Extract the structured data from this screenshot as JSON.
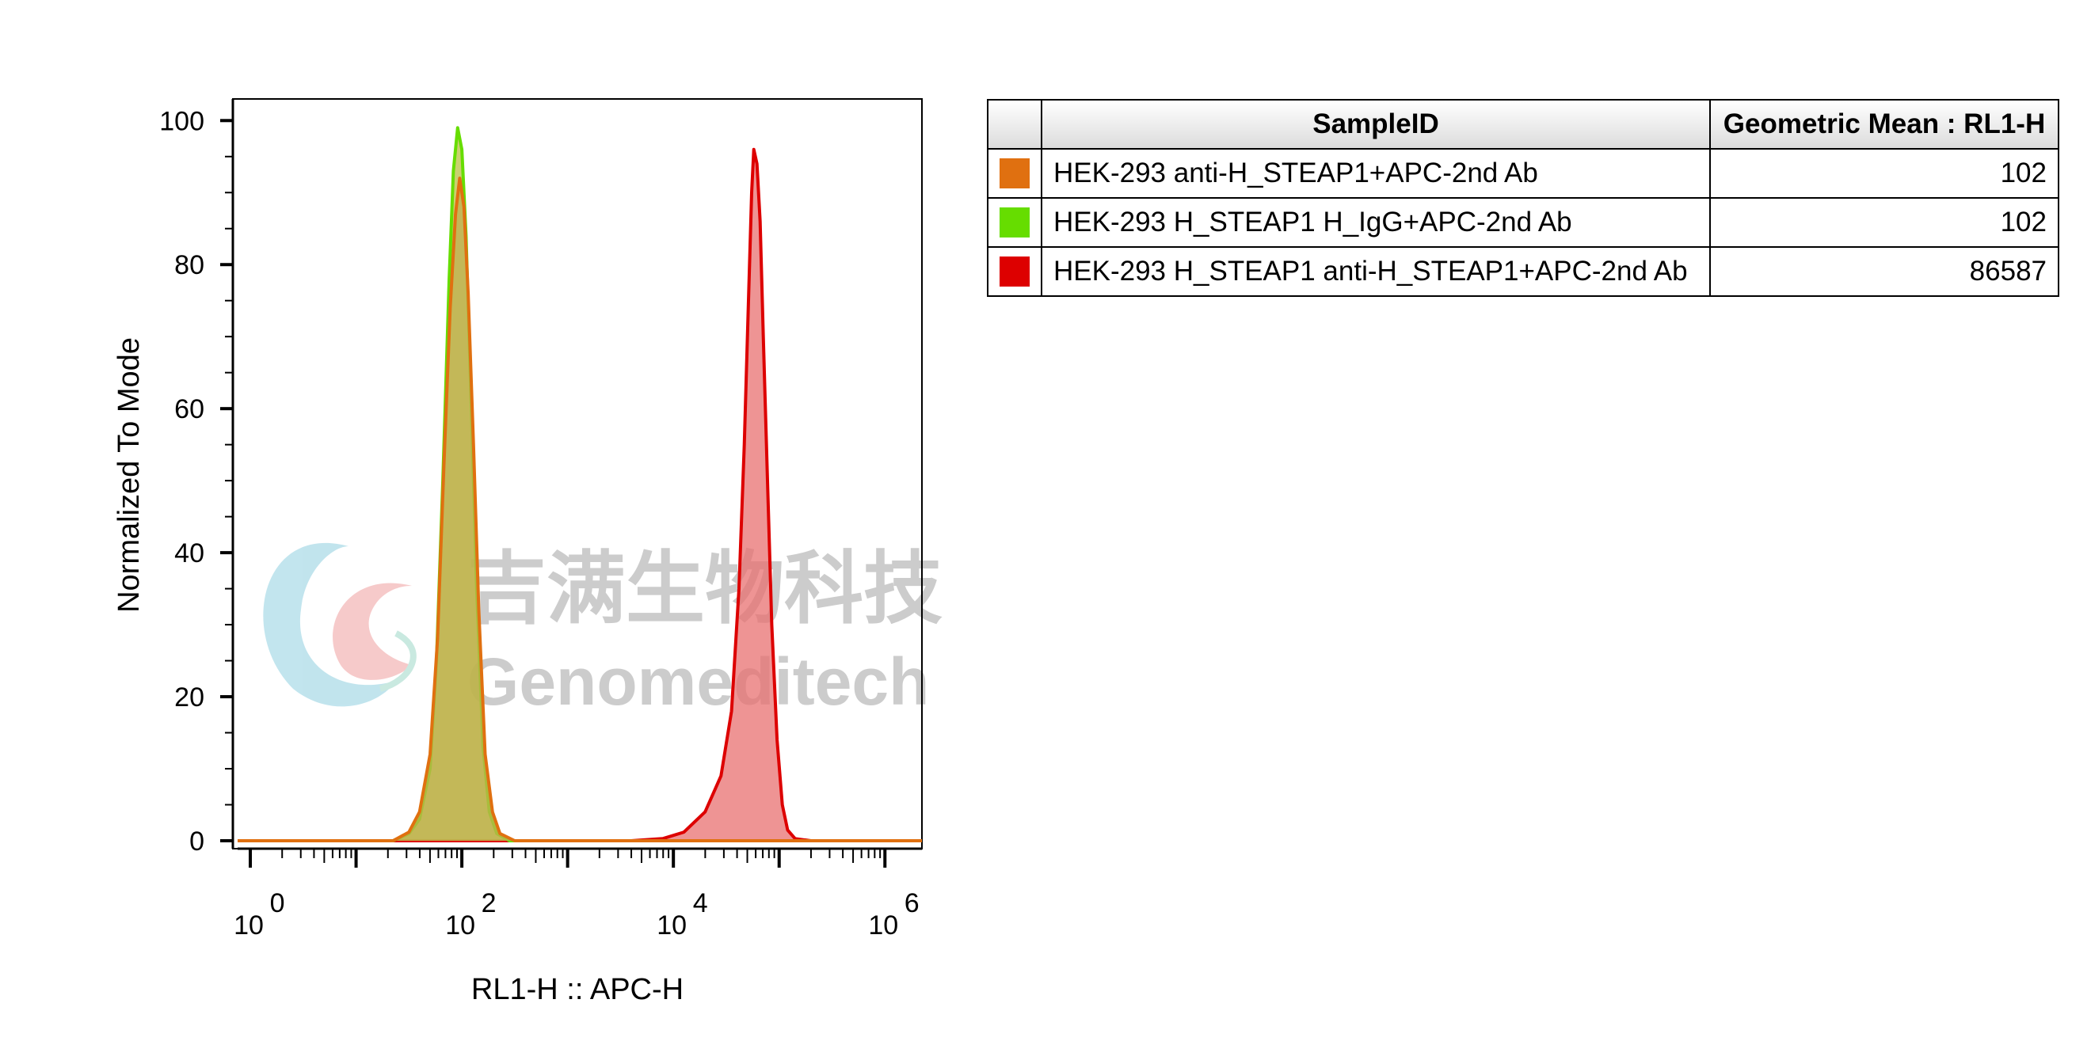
{
  "watermark": {
    "line1": "吉满生物科技",
    "line2": "Genomeditech"
  },
  "table": {
    "headers": [
      "SampleID",
      "Geometric Mean : RL1-H"
    ],
    "rows": [
      {
        "color": "#E07010",
        "sample": "HEK-293 anti-H_STEAP1+APC-2nd Ab",
        "value": "102"
      },
      {
        "color": "#66DD00",
        "sample": "HEK-293 H_STEAP1 H_IgG+APC-2nd Ab",
        "value": "102"
      },
      {
        "color": "#DD0000",
        "sample": "HEK-293 H_STEAP1 anti-H_STEAP1+APC-2nd Ab",
        "value": "86587"
      }
    ]
  },
  "chart_data": {
    "type": "area",
    "xlabel": "RL1-H :: APC-H",
    "ylabel": "Normalized To Mode",
    "x_scale": "log10",
    "xlim_exp": [
      -0.12,
      6.35
    ],
    "ylim": [
      0,
      103
    ],
    "x_ticks": [
      {
        "base": "10",
        "exp": "0"
      },
      {
        "base": "10",
        "exp": "2"
      },
      {
        "base": "10",
        "exp": "4"
      },
      {
        "base": "10",
        "exp": "6"
      }
    ],
    "y_ticks": [
      "0",
      "20",
      "40",
      "60",
      "80",
      "100"
    ],
    "series": [
      {
        "name": "HEK-293 H_STEAP1 anti-H_STEAP1+APC-2nd Ab",
        "color": "#DD0000",
        "fill": "#E87070",
        "points": [
          [
            -0.12,
            0
          ],
          [
            3.6,
            0
          ],
          [
            3.9,
            0.3
          ],
          [
            4.1,
            1.2
          ],
          [
            4.3,
            4
          ],
          [
            4.45,
            9
          ],
          [
            4.55,
            18
          ],
          [
            4.62,
            35
          ],
          [
            4.67,
            55
          ],
          [
            4.71,
            75
          ],
          [
            4.74,
            90
          ],
          [
            4.76,
            96
          ],
          [
            4.79,
            94
          ],
          [
            4.82,
            86
          ],
          [
            4.85,
            70
          ],
          [
            4.89,
            50
          ],
          [
            4.93,
            30
          ],
          [
            4.98,
            14
          ],
          [
            5.03,
            5
          ],
          [
            5.08,
            1.5
          ],
          [
            5.15,
            0.3
          ],
          [
            5.3,
            0
          ],
          [
            6.35,
            0
          ]
        ]
      },
      {
        "name": "HEK-293 H_STEAP1 H_IgG+APC-2nd Ab",
        "color": "#66DD00",
        "fill": "#B8C040",
        "points": [
          [
            -0.12,
            0
          ],
          [
            1.35,
            0
          ],
          [
            1.5,
            1
          ],
          [
            1.6,
            3
          ],
          [
            1.7,
            10
          ],
          [
            1.76,
            25
          ],
          [
            1.82,
            50
          ],
          [
            1.88,
            78
          ],
          [
            1.92,
            93
          ],
          [
            1.96,
            99
          ],
          [
            2.0,
            96
          ],
          [
            2.04,
            84
          ],
          [
            2.09,
            60
          ],
          [
            2.14,
            35
          ],
          [
            2.2,
            13
          ],
          [
            2.26,
            4
          ],
          [
            2.33,
            1
          ],
          [
            2.45,
            0
          ],
          [
            6.35,
            0
          ]
        ]
      },
      {
        "name": "HEK-293 anti-H_STEAP1+APC-2nd Ab",
        "color": "#E07010",
        "fill": "#C0B050",
        "points": [
          [
            -0.12,
            0
          ],
          [
            1.35,
            0
          ],
          [
            1.5,
            1.2
          ],
          [
            1.6,
            4
          ],
          [
            1.7,
            12
          ],
          [
            1.77,
            28
          ],
          [
            1.83,
            52
          ],
          [
            1.89,
            74
          ],
          [
            1.94,
            87
          ],
          [
            1.98,
            92
          ],
          [
            2.02,
            88
          ],
          [
            2.06,
            76
          ],
          [
            2.11,
            55
          ],
          [
            2.16,
            32
          ],
          [
            2.22,
            12
          ],
          [
            2.29,
            4
          ],
          [
            2.36,
            1
          ],
          [
            2.5,
            0
          ],
          [
            6.35,
            0
          ]
        ]
      }
    ]
  }
}
